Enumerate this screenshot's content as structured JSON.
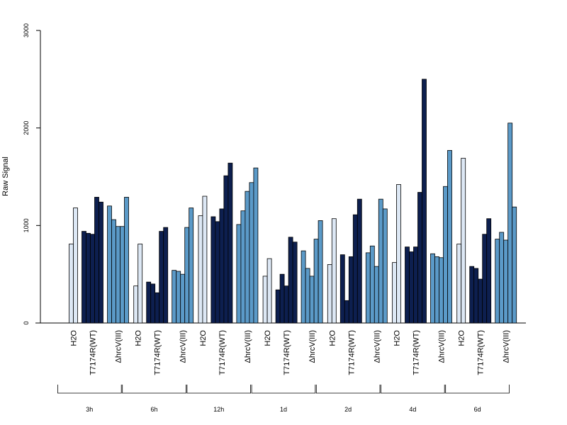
{
  "chart_data": {
    "type": "bar",
    "ylabel": "Raw Signal",
    "ylim": [
      0,
      3000
    ],
    "yticks": [
      0,
      1000,
      2000,
      3000
    ],
    "grid": false,
    "legend": "none",
    "colors": {
      "H2O": "#dde8f5",
      "T7174R(WT)": "#0d1f4f",
      "ΔhrcV(III)": "#5b9ac8"
    },
    "treatments": [
      "H2O",
      "T7174R(WT)",
      "ΔhrcV(III)"
    ],
    "timepoints": [
      {
        "label": "3h",
        "groups": [
          {
            "treatment": "H2O",
            "values": [
              810,
              1180
            ]
          },
          {
            "treatment": "T7174R(WT)",
            "values": [
              940,
              920,
              910,
              1290,
              1240
            ]
          },
          {
            "treatment": "ΔhrcV(III)",
            "values": [
              1200,
              1060,
              990,
              990,
              1290
            ]
          }
        ]
      },
      {
        "label": "6h",
        "groups": [
          {
            "treatment": "H2O",
            "values": [
              380,
              810
            ]
          },
          {
            "treatment": "T7174R(WT)",
            "values": [
              420,
              400,
              310,
              940,
              980
            ]
          },
          {
            "treatment": "ΔhrcV(III)",
            "values": [
              540,
              530,
              500,
              980,
              1180
            ]
          }
        ]
      },
      {
        "label": "12h",
        "groups": [
          {
            "treatment": "H2O",
            "values": [
              1100,
              1300
            ]
          },
          {
            "treatment": "T7174R(WT)",
            "values": [
              1090,
              1040,
              1170,
              1510,
              1640
            ]
          },
          {
            "treatment": "ΔhrcV(III)",
            "values": [
              1010,
              1150,
              1350,
              1440,
              1590
            ]
          }
        ]
      },
      {
        "label": "1d",
        "groups": [
          {
            "treatment": "H2O",
            "values": [
              480,
              660
            ]
          },
          {
            "treatment": "T7174R(WT)",
            "values": [
              340,
              500,
              380,
              880,
              830
            ]
          },
          {
            "treatment": "ΔhrcV(III)",
            "values": [
              740,
              560,
              480,
              860,
              1050
            ]
          }
        ]
      },
      {
        "label": "2d",
        "groups": [
          {
            "treatment": "H2O",
            "values": [
              600,
              1070
            ]
          },
          {
            "treatment": "T7174R(WT)",
            "values": [
              700,
              230,
              680,
              1110,
              1270
            ]
          },
          {
            "treatment": "ΔhrcV(III)",
            "values": [
              720,
              790,
              580,
              1270,
              1170
            ]
          }
        ]
      },
      {
        "label": "4d",
        "groups": [
          {
            "treatment": "H2O",
            "values": [
              620,
              1420
            ]
          },
          {
            "treatment": "T7174R(WT)",
            "values": [
              780,
              730,
              780,
              1340,
              2500
            ]
          },
          {
            "treatment": "ΔhrcV(III)",
            "values": [
              710,
              680,
              670,
              1400,
              1770
            ]
          }
        ]
      },
      {
        "label": "6d",
        "groups": [
          {
            "treatment": "H2O",
            "values": [
              810,
              1690
            ]
          },
          {
            "treatment": "T7174R(WT)",
            "values": [
              580,
              560,
              450,
              910,
              1070
            ]
          },
          {
            "treatment": "ΔhrcV(III)",
            "values": [
              860,
              930,
              850,
              2050,
              1190
            ]
          }
        ]
      }
    ]
  }
}
